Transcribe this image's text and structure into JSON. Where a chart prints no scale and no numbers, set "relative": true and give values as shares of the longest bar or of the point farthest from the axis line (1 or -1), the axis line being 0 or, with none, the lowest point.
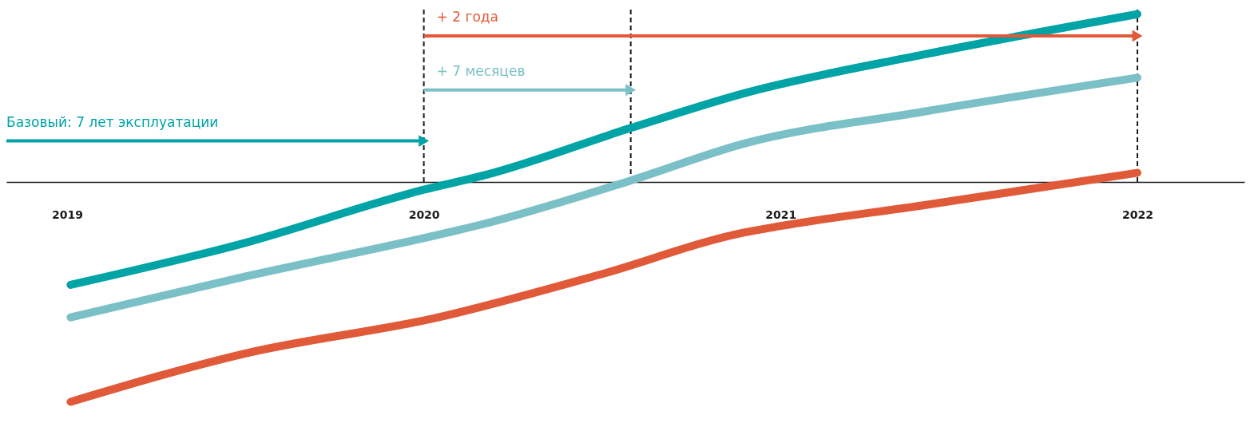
{
  "chart_data": {
    "type": "line",
    "relative": true,
    "line_style": "solid",
    "grid": false,
    "xlim": [
      2018.83,
      2022.3
    ],
    "xticks": [
      2019,
      2020,
      2021,
      2022
    ],
    "series": [
      {
        "color": "#00a3a6",
        "x": [
          2019.01,
          2019.48,
          2020.0,
          2020.18,
          2020.58,
          2020.9,
          2021.4,
          2022.0
        ],
        "values": [
          -0.468,
          -0.285,
          -0.035,
          0.035,
          0.246,
          0.405,
          0.58,
          0.764
        ]
      },
      {
        "color": "#7bc0c6",
        "x": [
          2019.01,
          2019.5,
          2020.07,
          2020.16,
          2020.58,
          2020.9,
          2021.4,
          2022.0
        ],
        "values": [
          -0.616,
          -0.43,
          -0.229,
          -0.194,
          0.007,
          0.176,
          0.32,
          0.475
        ]
      },
      {
        "color": "#e05a3a",
        "x": [
          2019.01,
          2019.5,
          2020.04,
          2020.49,
          2020.9,
          2021.0,
          2021.4,
          2022.0
        ],
        "values": [
          -1.0,
          -0.78,
          -0.616,
          -0.423,
          -0.229,
          -0.2,
          -0.106,
          0.042
        ]
      }
    ],
    "ref_lines": [
      {
        "axis": "x",
        "value": 2020,
        "line_style": "dashed",
        "color": "#1a1a1a"
      },
      {
        "axis": "x",
        "value": 2020.58,
        "line_style": "dashed",
        "color": "#1a1a1a"
      },
      {
        "axis": "x",
        "value": 2022,
        "line_style": "dashed",
        "color": "#1a1a1a"
      }
    ],
    "annotations": [
      {
        "text": "Базовый: 7 лет эксплуатации",
        "x": 2020,
        "y": 0.187
      },
      {
        "text": "+ 7 месяцев",
        "x": 2020.58,
        "y": 0.419
      },
      {
        "text": "+ 2 года",
        "x": 2022,
        "y": 0.665
      }
    ]
  }
}
